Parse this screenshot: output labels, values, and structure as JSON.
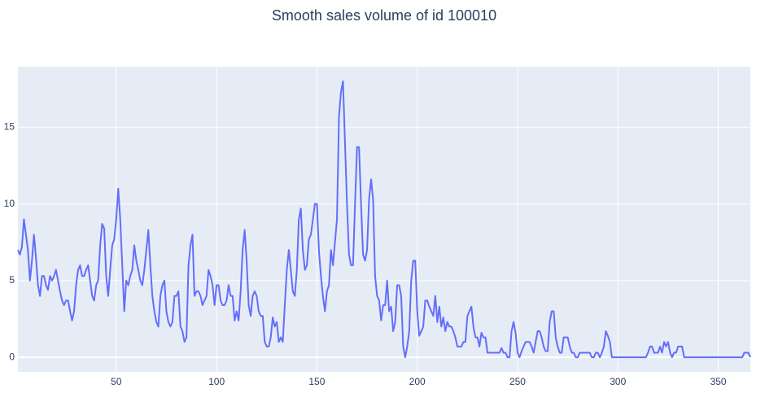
{
  "chart_data": {
    "type": "line",
    "title": "Smooth sales volume of id 100010",
    "x": [
      1,
      2,
      3,
      4,
      5,
      6,
      7,
      8,
      9,
      10,
      11,
      12,
      13,
      14,
      15,
      16,
      17,
      18,
      19,
      20,
      21,
      22,
      23,
      24,
      25,
      26,
      27,
      28,
      29,
      30,
      31,
      32,
      33,
      34,
      35,
      36,
      37,
      38,
      39,
      40,
      41,
      42,
      43,
      44,
      45,
      46,
      47,
      48,
      49,
      50,
      51,
      52,
      53,
      54,
      55,
      56,
      57,
      58,
      59,
      60,
      61,
      62,
      63,
      64,
      65,
      66,
      67,
      68,
      69,
      70,
      71,
      72,
      73,
      74,
      75,
      76,
      77,
      78,
      79,
      80,
      81,
      82,
      83,
      84,
      85,
      86,
      87,
      88,
      89,
      90,
      91,
      92,
      93,
      94,
      95,
      96,
      97,
      98,
      99,
      100,
      101,
      102,
      103,
      104,
      105,
      106,
      107,
      108,
      109,
      110,
      111,
      112,
      113,
      114,
      115,
      116,
      117,
      118,
      119,
      120,
      121,
      122,
      123,
      124,
      125,
      126,
      127,
      128,
      129,
      130,
      131,
      132,
      133,
      134,
      135,
      136,
      137,
      138,
      139,
      140,
      141,
      142,
      143,
      144,
      145,
      146,
      147,
      148,
      149,
      150,
      151,
      152,
      153,
      154,
      155,
      156,
      157,
      158,
      159,
      160,
      161,
      162,
      163,
      164,
      165,
      166,
      167,
      168,
      169,
      170,
      171,
      172,
      173,
      174,
      175,
      176,
      177,
      178,
      179,
      180,
      181,
      182,
      183,
      184,
      185,
      186,
      187,
      188,
      189,
      190,
      191,
      192,
      193,
      194,
      195,
      196,
      197,
      198,
      199,
      200,
      201,
      202,
      203,
      204,
      205,
      206,
      207,
      208,
      209,
      210,
      211,
      212,
      213,
      214,
      215,
      216,
      217,
      218,
      219,
      220,
      221,
      222,
      223,
      224,
      225,
      226,
      227,
      228,
      229,
      230,
      231,
      232,
      233,
      234,
      235,
      236,
      237,
      238,
      239,
      240,
      241,
      242,
      243,
      244,
      245,
      246,
      247,
      248,
      249,
      250,
      251,
      252,
      253,
      254,
      255,
      256,
      257,
      258,
      259,
      260,
      261,
      262,
      263,
      264,
      265,
      266,
      267,
      268,
      269,
      270,
      271,
      272,
      273,
      274,
      275,
      276,
      277,
      278,
      279,
      280,
      281,
      282,
      283,
      284,
      285,
      286,
      287,
      288,
      289,
      290,
      291,
      292,
      293,
      294,
      295,
      296,
      297,
      298,
      299,
      300,
      301,
      302,
      303,
      304,
      305,
      306,
      307,
      308,
      309,
      310,
      311,
      312,
      313,
      314,
      315,
      316,
      317,
      318,
      319,
      320,
      321,
      322,
      323,
      324,
      325,
      326,
      327,
      328,
      329,
      330,
      331,
      332,
      333,
      334,
      335,
      336,
      337,
      338,
      339,
      340,
      341,
      342,
      343,
      344,
      345,
      346,
      347,
      348,
      349,
      350,
      351,
      352,
      353,
      354,
      355,
      356,
      357,
      358,
      359,
      360,
      361,
      362,
      363,
      364,
      365,
      366
    ],
    "values": [
      7.0,
      6.7,
      7.2,
      9.0,
      8.0,
      7.0,
      5.0,
      6.3,
      8.0,
      6.5,
      4.7,
      4.0,
      5.3,
      5.3,
      4.7,
      4.4,
      5.3,
      5.0,
      5.3,
      5.7,
      5.0,
      4.3,
      3.7,
      3.4,
      3.7,
      3.7,
      3.0,
      2.4,
      3.0,
      4.7,
      5.7,
      6.0,
      5.3,
      5.3,
      5.7,
      6.0,
      5.0,
      4.0,
      3.7,
      4.7,
      5.0,
      7.3,
      8.7,
      8.4,
      5.3,
      4.0,
      5.7,
      7.3,
      7.7,
      9.0,
      11.0,
      9.0,
      6.0,
      3.0,
      5.0,
      4.7,
      5.3,
      5.7,
      7.3,
      6.3,
      5.7,
      5.0,
      4.7,
      5.7,
      7.0,
      8.3,
      6.0,
      4.0,
      3.0,
      2.3,
      2.0,
      4.0,
      4.7,
      5.0,
      3.0,
      2.3,
      2.0,
      2.3,
      4.0,
      4.0,
      4.3,
      2.0,
      1.7,
      1.0,
      1.3,
      6.0,
      7.3,
      8.0,
      4.0,
      4.3,
      4.3,
      4.0,
      3.4,
      3.7,
      4.0,
      5.7,
      5.3,
      4.7,
      3.4,
      4.7,
      4.7,
      3.7,
      3.4,
      3.4,
      3.7,
      4.7,
      4.0,
      4.0,
      2.4,
      3.0,
      2.4,
      4.3,
      7.0,
      8.3,
      6.3,
      3.4,
      2.7,
      4.0,
      4.3,
      4.0,
      3.0,
      2.7,
      2.7,
      1.0,
      0.7,
      0.7,
      1.3,
      2.6,
      2.0,
      2.3,
      1.0,
      1.3,
      1.0,
      3.4,
      5.7,
      7.0,
      5.7,
      4.3,
      4.0,
      5.7,
      9.0,
      9.7,
      7.0,
      5.7,
      6.0,
      7.7,
      8.0,
      9.0,
      10.0,
      10.0,
      7.0,
      5.3,
      4.0,
      3.0,
      4.3,
      4.7,
      7.0,
      6.0,
      7.5,
      9.0,
      15.7,
      17.3,
      18.0,
      14.0,
      10.0,
      6.7,
      6.0,
      6.0,
      10.0,
      13.7,
      13.7,
      10.0,
      6.7,
      6.3,
      7.0,
      10.3,
      11.6,
      10.3,
      5.3,
      4.0,
      3.7,
      2.4,
      3.4,
      3.4,
      5.0,
      3.0,
      3.3,
      1.7,
      2.3,
      4.7,
      4.7,
      4.0,
      0.7,
      0.0,
      0.7,
      1.7,
      5.0,
      6.3,
      6.3,
      3.0,
      1.4,
      1.7,
      2.0,
      3.7,
      3.7,
      3.3,
      3.0,
      2.7,
      4.0,
      2.3,
      3.3,
      2.0,
      2.6,
      1.7,
      2.3,
      2.0,
      2.0,
      1.7,
      1.3,
      0.7,
      0.7,
      0.7,
      1.0,
      1.0,
      2.7,
      3.0,
      3.3,
      2.0,
      1.3,
      1.3,
      0.7,
      1.6,
      1.3,
      1.3,
      0.3,
      0.3,
      0.3,
      0.3,
      0.3,
      0.3,
      0.3,
      0.6,
      0.3,
      0.3,
      0.0,
      0.0,
      1.7,
      2.3,
      1.6,
      0.3,
      0.0,
      0.4,
      0.7,
      1.0,
      1.0,
      1.0,
      0.7,
      0.3,
      1.0,
      1.7,
      1.7,
      1.3,
      0.7,
      0.4,
      0.4,
      2.3,
      3.0,
      3.0,
      1.3,
      0.7,
      0.3,
      0.3,
      1.3,
      1.3,
      1.3,
      0.7,
      0.3,
      0.3,
      0.0,
      0.0,
      0.3,
      0.3,
      0.3,
      0.3,
      0.3,
      0.3,
      0.0,
      0.0,
      0.3,
      0.3,
      0.0,
      0.3,
      0.7,
      1.7,
      1.4,
      1.0,
      0.0,
      0,
      0,
      0,
      0,
      0,
      0,
      0,
      0,
      0,
      0,
      0,
      0,
      0,
      0,
      0,
      0,
      0,
      0.3,
      0.7,
      0.7,
      0.3,
      0.3,
      0.3,
      0.7,
      0.3,
      1.0,
      0.7,
      1.0,
      0.3,
      0.0,
      0.3,
      0.3,
      0.7,
      0.7,
      0.7,
      0.0,
      0,
      0,
      0,
      0,
      0,
      0,
      0,
      0,
      0,
      0,
      0,
      0,
      0,
      0,
      0,
      0,
      0,
      0,
      0,
      0,
      0,
      0,
      0,
      0,
      0,
      0,
      0,
      0,
      0,
      0.3,
      0.3,
      0.3,
      0.0
    ],
    "color": "#636efa",
    "xlim": [
      1,
      366
    ],
    "xticks": [
      50,
      100,
      150,
      200,
      250,
      300,
      350
    ],
    "ylim": [
      -0.95,
      18.95
    ],
    "yticks": [
      0,
      5,
      10,
      15
    ],
    "grid": true
  }
}
